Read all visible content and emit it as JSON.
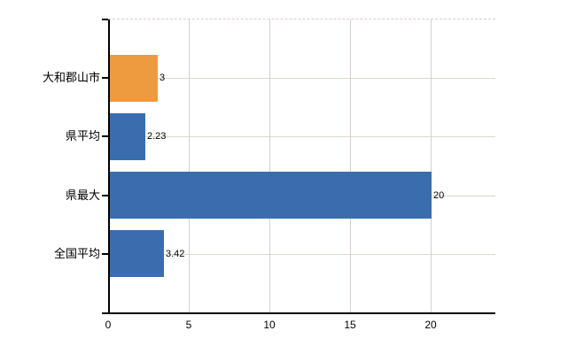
{
  "chart_data": {
    "type": "bar",
    "orientation": "horizontal",
    "title": "",
    "xlabel": "",
    "ylabel": "",
    "categories": [
      "大和郡山市",
      "県平均",
      "県最大",
      "全国平均"
    ],
    "values": [
      3,
      2.23,
      20,
      3.42
    ],
    "value_labels": [
      "3",
      "2.23",
      "20",
      "3.42"
    ],
    "bar_colors": [
      "#ee9a3f",
      "#3b6dae",
      "#3b6dae",
      "#3b6dae"
    ],
    "x_ticks": [
      0,
      5,
      10,
      15,
      20
    ],
    "x_tick_labels": [
      "0",
      "5",
      "10",
      "15",
      "20"
    ],
    "xlim": [
      0,
      24
    ],
    "grid": true,
    "legend": "none",
    "colors": {
      "highlight_orange": "#ee9a3f",
      "series_blue": "#3b6dae",
      "axis": "#000000",
      "gridline_vertical": "#d8d0d0",
      "gridline_horizontal": "#d6dccc",
      "plot_top_border": "#d8cccc",
      "background": "#ffffff"
    }
  }
}
